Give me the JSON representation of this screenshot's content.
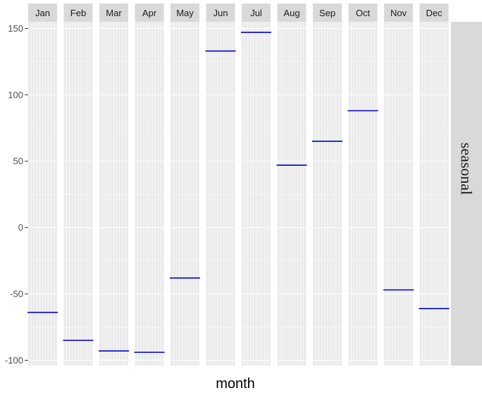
{
  "chart_data": {
    "type": "line",
    "categories": [
      "Jan",
      "Feb",
      "Mar",
      "Apr",
      "May",
      "Jun",
      "Jul",
      "Aug",
      "Sep",
      "Oct",
      "Nov",
      "Dec"
    ],
    "values": [
      -64,
      -85,
      -93,
      -94,
      -38,
      133,
      147,
      47,
      65,
      88,
      -47,
      -61
    ],
    "xlabel": "month",
    "ylabel": "",
    "facet_label": "seasonal",
    "yticks": [
      -100,
      -50,
      0,
      50,
      100,
      150
    ],
    "ylim": [
      -104,
      155
    ],
    "grid": true,
    "colors": {
      "line": "#0000cc",
      "panel": "#ebebeb",
      "strip": "#d9d9d9",
      "grid": "#ffffff"
    }
  }
}
